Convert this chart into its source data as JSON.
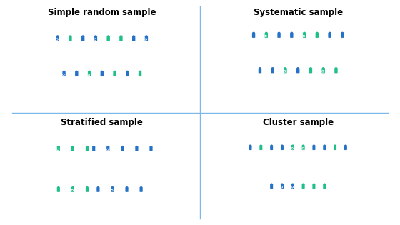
{
  "title_simple": "Simple random sample",
  "title_systematic": "Systematic sample",
  "title_stratified": "Stratified sample",
  "title_cluster": "Cluster sample",
  "blue": "#2472C8",
  "green": "#1EBF8A",
  "divider_color": "#7DB8E8",
  "bg_color": "#FFFFFF",
  "title_fontsize": 8.5,
  "title_fontweight": "bold",
  "simple_random": {
    "row1": [
      "blue_sel",
      "green",
      "blue",
      "blue_sel",
      "green",
      "green",
      "blue",
      "blue_sel"
    ],
    "row2": [
      "blue_sel",
      "blue",
      "green_sel",
      "blue",
      "green",
      "blue",
      "green"
    ]
  },
  "systematic": {
    "row1": [
      "blue",
      "green_sel",
      "blue",
      "blue",
      "green_sel",
      "green",
      "blue",
      "blue"
    ],
    "row2": [
      "blue",
      "blue",
      "green_sel",
      "blue",
      "green",
      "green_sel",
      "green"
    ]
  },
  "stratified": {
    "row1_left": [
      "green_sel",
      "green",
      "green"
    ],
    "row1_right": [
      "blue",
      "blue_sel",
      "blue",
      "blue",
      "blue"
    ],
    "row2_left": [
      "green",
      "green_sel",
      "green"
    ],
    "row2_right": [
      "blue",
      "blue_sel",
      "blue",
      "blue"
    ]
  },
  "cluster": {
    "row1": [
      "blue",
      "green",
      "blue",
      "blue",
      "green_sel",
      "green_sel",
      "blue",
      "blue",
      "green",
      "blue"
    ],
    "row2": [
      "blue",
      "blue_sel",
      "blue_sel",
      "green",
      "green",
      "green"
    ]
  }
}
